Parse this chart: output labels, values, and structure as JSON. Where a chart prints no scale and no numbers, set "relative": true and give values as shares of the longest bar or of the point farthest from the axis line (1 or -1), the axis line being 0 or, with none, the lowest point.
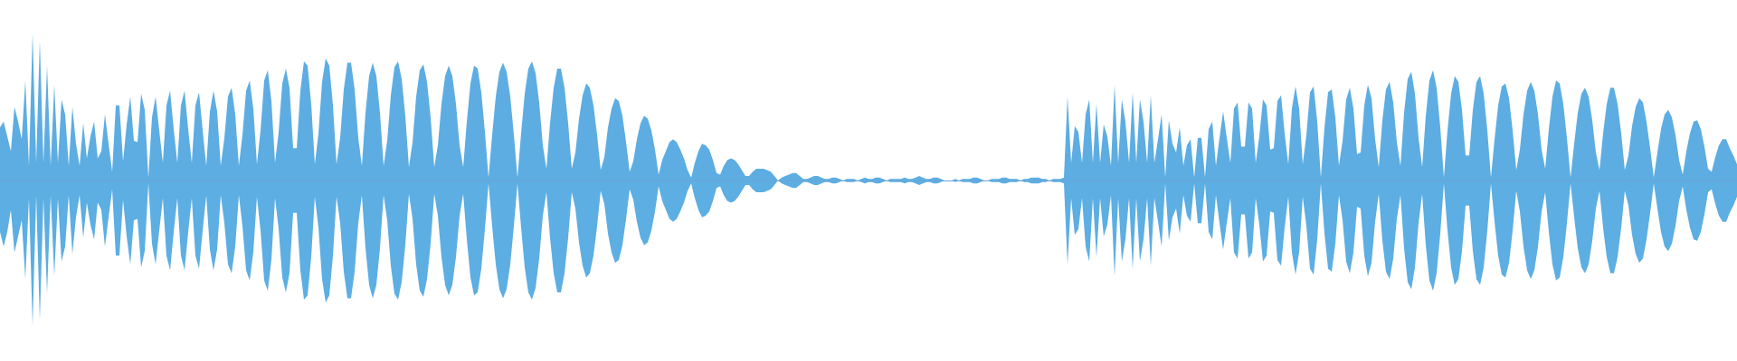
{
  "chart_data": {
    "type": "area",
    "relative": true,
    "marker": "none",
    "categories": [
      null,
      null,
      null,
      null,
      null,
      null,
      null,
      null,
      null,
      null,
      null,
      null,
      null,
      null,
      null,
      null,
      null,
      null,
      null,
      null,
      null,
      null,
      null,
      null,
      null,
      null,
      null,
      null,
      null,
      null,
      null,
      null,
      null,
      null,
      null,
      null,
      null,
      null,
      null,
      null,
      null,
      null,
      null,
      null,
      null,
      null,
      null,
      null,
      null,
      null,
      null,
      null,
      null,
      null,
      null,
      null,
      null,
      null,
      null,
      null,
      null,
      null,
      null,
      null,
      null,
      null,
      null,
      null,
      null,
      null,
      null,
      null,
      null,
      null,
      null,
      null,
      null,
      null,
      null,
      null,
      null,
      null,
      null,
      null,
      null,
      null,
      null,
      null,
      null,
      null,
      null,
      null,
      null,
      null,
      null,
      null,
      null,
      null,
      null,
      null,
      null,
      null,
      null,
      null,
      null,
      null,
      null,
      null,
      null,
      null,
      null,
      null,
      null,
      null,
      null,
      null,
      null,
      null,
      null,
      null,
      null,
      null,
      null,
      null,
      null,
      null,
      null,
      null,
      null,
      null,
      null,
      null,
      null,
      null,
      null,
      null,
      null,
      null,
      null,
      null,
      null,
      null,
      null,
      null,
      null,
      null,
      null,
      null,
      null,
      null,
      null,
      null,
      null,
      null,
      null,
      null,
      null,
      null,
      null,
      null,
      null,
      null,
      null,
      null,
      null,
      null,
      null,
      null,
      null,
      null,
      null,
      null,
      null,
      null,
      null,
      null,
      null,
      null,
      null,
      null,
      null,
      null,
      null,
      null,
      null,
      null,
      null,
      null,
      null,
      null,
      null,
      null,
      null,
      null,
      null,
      null,
      null,
      null,
      null,
      null,
      null,
      null,
      null,
      null,
      null,
      null,
      null,
      null,
      null,
      null,
      null,
      null,
      null,
      null,
      null,
      null,
      null,
      null,
      null,
      null,
      null,
      null,
      null,
      null,
      null,
      null,
      null,
      null,
      null,
      null,
      null,
      null,
      null,
      null,
      null,
      null,
      null,
      null,
      null,
      null,
      null,
      null,
      null,
      null,
      null,
      null,
      null,
      null,
      null,
      null,
      null,
      null,
      null,
      null,
      null,
      null,
      null,
      null,
      null,
      null,
      null,
      null,
      null,
      null,
      null,
      null,
      null,
      null,
      null,
      null,
      null,
      null,
      null,
      null,
      null,
      null,
      null,
      null,
      null,
      null,
      null,
      null,
      null,
      null,
      null,
      null,
      null,
      null,
      null,
      null,
      null,
      null,
      null,
      null,
      null,
      null,
      null,
      null,
      null,
      null,
      null,
      null,
      null,
      null,
      null,
      null,
      null,
      null,
      null,
      null,
      null,
      null,
      null,
      null,
      null,
      null,
      null,
      null,
      null,
      null,
      null,
      null,
      null,
      null,
      null,
      null,
      null,
      null,
      null,
      null,
      null,
      null,
      null,
      null,
      null,
      null,
      null,
      null,
      null,
      null,
      null,
      null,
      null,
      null,
      null,
      null,
      null,
      null,
      null,
      null,
      null,
      null,
      null,
      null,
      null,
      null,
      null,
      null,
      null,
      null,
      null,
      null,
      null,
      null,
      null,
      null,
      null,
      null,
      null,
      null,
      null,
      null,
      null,
      null,
      null,
      null,
      null,
      null,
      null,
      null,
      null,
      null,
      null,
      null,
      null,
      null,
      null,
      null,
      null,
      null,
      null,
      null,
      null,
      null,
      null,
      null,
      null,
      null,
      null,
      null,
      null,
      null,
      null,
      null,
      null,
      null,
      null,
      null,
      null,
      null,
      null,
      null,
      null,
      null,
      null,
      null,
      null,
      null,
      null,
      null,
      null,
      null,
      null,
      null,
      null,
      null,
      null,
      null,
      null,
      null,
      null,
      null,
      null,
      null,
      null,
      null,
      null,
      null,
      null,
      null,
      null,
      null,
      null,
      null,
      null,
      null,
      null,
      null,
      null,
      null,
      null,
      null,
      null,
      null,
      null,
      null,
      null,
      null,
      null,
      null,
      null,
      null,
      null,
      null,
      null,
      null,
      null,
      null,
      null,
      null,
      null,
      null,
      null,
      null,
      null,
      null,
      null,
      null,
      null,
      null,
      null
    ],
    "ref_lines": [
      {
        "axis": "y",
        "value": 0,
        "color": "#6ba6d6"
      }
    ],
    "series": [
      {
        "color": "#5dade2",
        "values": [
          0.36,
          0.4,
          0.3,
          0.2,
          0.5,
          0.4,
          0.28,
          0.68,
          0.1,
          1.0,
          0.12,
          0.95,
          0.12,
          0.78,
          0.1,
          0.65,
          0.12,
          0.55,
          0.45,
          0.1,
          0.5,
          0.25,
          0.1,
          0.39,
          0.15,
          0.3,
          0.4,
          0.15,
          0.2,
          0.45,
          0.25,
          0.06,
          0.51,
          0.51,
          0.13,
          0.38,
          0.57,
          0.27,
          0.26,
          0.59,
          0.48,
          0.02,
          0.43,
          0.57,
          0.34,
          0.12,
          0.51,
          0.61,
          0.35,
          0.12,
          0.51,
          0.61,
          0.35,
          0.12,
          0.51,
          0.6,
          0.34,
          0.1,
          0.47,
          0.61,
          0.47,
          0.1,
          0.29,
          0.57,
          0.63,
          0.45,
          0.1,
          0.31,
          0.61,
          0.68,
          0.49,
          0.11,
          0.34,
          0.68,
          0.75,
          0.54,
          0.12,
          0.33,
          0.66,
          0.76,
          0.63,
          0.22,
          0.22,
          0.61,
          0.81,
          0.78,
          0.52,
          0.11,
          0.32,
          0.67,
          0.83,
          0.78,
          0.51,
          0.11,
          0.29,
          0.62,
          0.8,
          0.8,
          0.62,
          0.29,
          0.1,
          0.46,
          0.71,
          0.8,
          0.71,
          0.46,
          0.1,
          0.27,
          0.58,
          0.77,
          0.81,
          0.69,
          0.44,
          0.09,
          0.26,
          0.57,
          0.75,
          0.79,
          0.67,
          0.43,
          0.09,
          0.24,
          0.52,
          0.71,
          0.78,
          0.71,
          0.52,
          0.24,
          0.09,
          0.4,
          0.66,
          0.78,
          0.76,
          0.6,
          0.33,
          0.02,
          0.31,
          0.57,
          0.74,
          0.8,
          0.74,
          0.57,
          0.31,
          0.02,
          0.32,
          0.59,
          0.76,
          0.81,
          0.73,
          0.53,
          0.24,
          0.08,
          0.39,
          0.63,
          0.76,
          0.76,
          0.63,
          0.39,
          0.08,
          0.19,
          0.42,
          0.58,
          0.66,
          0.63,
          0.51,
          0.31,
          0.07,
          0.16,
          0.36,
          0.49,
          0.56,
          0.54,
          0.44,
          0.26,
          0.06,
          0.13,
          0.28,
          0.39,
          0.44,
          0.42,
          0.34,
          0.21,
          0.04,
          0.14,
          0.2,
          0.26,
          0.28,
          0.26,
          0.21,
          0.15,
          0.07,
          0.02,
          0.12,
          0.2,
          0.25,
          0.24,
          0.21,
          0.14,
          0.05,
          0.04,
          0.1,
          0.14,
          0.15,
          0.14,
          0.11,
          0.07,
          0.03,
          0.03,
          0.06,
          0.08,
          0.08,
          0.08,
          0.07,
          0.06,
          0.03,
          0.0,
          0.02,
          0.03,
          0.04,
          0.05,
          0.05,
          0.03,
          0.01,
          0.01,
          0.02,
          0.03,
          0.03,
          0.02,
          0.01,
          0.01,
          0.02,
          0.02,
          0.01,
          0.0,
          0.01,
          0.01,
          0.01,
          0.0,
          0.01,
          0.02,
          0.01,
          0.01,
          0.02,
          0.02,
          0.01,
          0.0,
          0.01,
          0.01,
          0.01,
          0.01,
          0.02,
          0.01,
          0.01,
          0.02,
          0.03,
          0.02,
          0.01,
          0.01,
          0.02,
          0.02,
          0.01,
          0.0,
          0.0,
          0.0,
          0.01,
          0.0,
          0.01,
          0.01,
          0.01,
          0.02,
          0.02,
          0.01,
          0.0,
          0.0,
          0.01,
          0.01,
          0.01,
          0.02,
          0.02,
          0.01,
          0.01,
          0.01,
          0.0,
          0.01,
          0.01,
          0.02,
          0.02,
          0.02,
          0.01,
          0.01,
          0.0,
          0.01,
          0.01,
          0.01,
          0.02,
          0.57,
          0.12,
          0.37,
          0.33,
          0.12,
          0.45,
          0.55,
          0.12,
          0.52,
          0.12,
          0.38,
          0.3,
          0.1,
          0.65,
          0.12,
          0.55,
          0.4,
          0.12,
          0.6,
          0.12,
          0.55,
          0.4,
          0.12,
          0.58,
          0.12,
          0.28,
          0.45,
          0.02,
          0.41,
          0.25,
          0.19,
          0.36,
          0.1,
          0.24,
          0.28,
          0.02,
          0.29,
          0.29,
          0.02,
          0.35,
          0.4,
          0.1,
          0.29,
          0.47,
          0.29,
          0.12,
          0.49,
          0.53,
          0.23,
          0.23,
          0.53,
          0.49,
          0.12,
          0.3,
          0.55,
          0.51,
          0.21,
          0.22,
          0.54,
          0.58,
          0.32,
          0.11,
          0.49,
          0.64,
          0.49,
          0.11,
          0.31,
          0.6,
          0.64,
          0.4,
          0.02,
          0.36,
          0.6,
          0.62,
          0.43,
          0.1,
          0.27,
          0.55,
          0.63,
          0.49,
          0.18,
          0.19,
          0.51,
          0.65,
          0.56,
          0.28,
          0.09,
          0.41,
          0.62,
          0.67,
          0.53,
          0.26,
          0.1,
          0.46,
          0.69,
          0.74,
          0.59,
          0.29,
          0.09,
          0.44,
          0.68,
          0.75,
          0.63,
          0.36,
          0.02,
          0.34,
          0.59,
          0.71,
          0.67,
          0.48,
          0.17,
          0.17,
          0.48,
          0.67,
          0.71,
          0.59,
          0.34,
          0.02,
          0.28,
          0.51,
          0.64,
          0.66,
          0.56,
          0.34,
          0.07,
          0.21,
          0.45,
          0.61,
          0.67,
          0.61,
          0.45,
          0.21,
          0.08,
          0.35,
          0.57,
          0.68,
          0.66,
          0.52,
          0.29,
          0.02,
          0.25,
          0.46,
          0.59,
          0.63,
          0.57,
          0.41,
          0.19,
          0.07,
          0.32,
          0.52,
          0.63,
          0.63,
          0.52,
          0.32,
          0.07,
          0.17,
          0.37,
          0.5,
          0.56,
          0.53,
          0.4,
          0.22,
          0.02,
          0.19,
          0.35,
          0.45,
          0.48,
          0.43,
          0.31,
          0.14,
          0.04,
          0.2,
          0.32,
          0.4,
          0.41,
          0.35,
          0.23,
          0.08,
          0.06,
          0.16,
          0.24,
          0.28,
          0.28,
          0.22,
          0.17,
          0.11
        ]
      },
      {
        "color": "#5caee3",
        "values": [
          -0.35,
          -0.45,
          -0.35,
          -0.2,
          -0.49,
          -0.38,
          -0.27,
          -0.67,
          -0.12,
          -0.99,
          -0.1,
          -0.95,
          -0.12,
          -0.77,
          -0.1,
          -0.65,
          -0.12,
          -0.55,
          -0.45,
          -0.1,
          -0.5,
          -0.25,
          -0.1,
          -0.39,
          -0.15,
          -0.3,
          -0.4,
          -0.15,
          -0.2,
          -0.45,
          -0.25,
          -0.06,
          -0.51,
          -0.51,
          -0.13,
          -0.38,
          -0.57,
          -0.27,
          -0.26,
          -0.59,
          -0.48,
          -0.02,
          -0.43,
          -0.57,
          -0.34,
          -0.12,
          -0.51,
          -0.61,
          -0.35,
          -0.12,
          -0.51,
          -0.61,
          -0.35,
          -0.12,
          -0.51,
          -0.6,
          -0.34,
          -0.1,
          -0.47,
          -0.61,
          -0.47,
          -0.1,
          -0.29,
          -0.57,
          -0.63,
          -0.45,
          -0.1,
          -0.31,
          -0.61,
          -0.68,
          -0.49,
          -0.11,
          -0.34,
          -0.68,
          -0.75,
          -0.54,
          -0.12,
          -0.33,
          -0.66,
          -0.76,
          -0.63,
          -0.22,
          -0.22,
          -0.61,
          -0.81,
          -0.78,
          -0.52,
          -0.11,
          -0.32,
          -0.67,
          -0.83,
          -0.78,
          -0.51,
          -0.11,
          -0.29,
          -0.62,
          -0.8,
          -0.8,
          -0.62,
          -0.29,
          -0.1,
          -0.46,
          -0.71,
          -0.8,
          -0.71,
          -0.46,
          -0.1,
          -0.27,
          -0.58,
          -0.77,
          -0.81,
          -0.69,
          -0.44,
          -0.09,
          -0.26,
          -0.57,
          -0.75,
          -0.79,
          -0.67,
          -0.43,
          -0.09,
          -0.24,
          -0.52,
          -0.71,
          -0.78,
          -0.71,
          -0.52,
          -0.24,
          -0.09,
          -0.4,
          -0.66,
          -0.78,
          -0.76,
          -0.6,
          -0.33,
          -0.02,
          -0.31,
          -0.57,
          -0.74,
          -0.8,
          -0.74,
          -0.57,
          -0.31,
          -0.02,
          -0.32,
          -0.59,
          -0.76,
          -0.81,
          -0.73,
          -0.53,
          -0.24,
          -0.08,
          -0.39,
          -0.63,
          -0.76,
          -0.76,
          -0.63,
          -0.39,
          -0.08,
          -0.19,
          -0.42,
          -0.58,
          -0.66,
          -0.63,
          -0.51,
          -0.31,
          -0.07,
          -0.16,
          -0.36,
          -0.49,
          -0.56,
          -0.54,
          -0.44,
          -0.26,
          -0.06,
          -0.13,
          -0.28,
          -0.39,
          -0.44,
          -0.42,
          -0.34,
          -0.21,
          -0.04,
          -0.14,
          -0.2,
          -0.26,
          -0.28,
          -0.26,
          -0.21,
          -0.15,
          -0.07,
          -0.02,
          -0.12,
          -0.2,
          -0.25,
          -0.24,
          -0.21,
          -0.14,
          -0.05,
          -0.04,
          -0.1,
          -0.14,
          -0.15,
          -0.14,
          -0.11,
          -0.07,
          -0.03,
          -0.03,
          -0.06,
          -0.08,
          -0.08,
          -0.08,
          -0.07,
          -0.06,
          -0.03,
          0.0,
          -0.02,
          -0.03,
          -0.04,
          -0.05,
          -0.05,
          -0.03,
          -0.01,
          -0.01,
          -0.02,
          -0.03,
          -0.03,
          -0.02,
          -0.01,
          -0.01,
          -0.02,
          -0.02,
          -0.01,
          0.0,
          -0.01,
          -0.01,
          -0.01,
          0.0,
          -0.01,
          -0.02,
          -0.01,
          -0.01,
          -0.02,
          -0.02,
          -0.01,
          0.0,
          -0.01,
          -0.01,
          -0.01,
          -0.01,
          -0.02,
          -0.01,
          -0.01,
          -0.02,
          -0.03,
          -0.02,
          -0.01,
          -0.01,
          -0.02,
          -0.02,
          -0.01,
          0.0,
          0.0,
          0.0,
          -0.01,
          0.0,
          -0.01,
          -0.01,
          -0.01,
          -0.02,
          -0.02,
          -0.01,
          0.0,
          0.0,
          -0.01,
          -0.01,
          -0.01,
          -0.02,
          -0.02,
          -0.01,
          -0.01,
          -0.01,
          0.0,
          -0.01,
          -0.01,
          -0.02,
          -0.02,
          -0.02,
          -0.01,
          -0.01,
          0.0,
          -0.01,
          -0.01,
          -0.01,
          -0.02,
          -0.57,
          -0.12,
          -0.37,
          -0.33,
          -0.12,
          -0.45,
          -0.55,
          -0.12,
          -0.52,
          -0.12,
          -0.38,
          -0.3,
          -0.1,
          -0.65,
          -0.12,
          -0.55,
          -0.4,
          -0.12,
          -0.6,
          -0.12,
          -0.55,
          -0.4,
          -0.12,
          -0.58,
          -0.12,
          -0.28,
          -0.45,
          -0.02,
          -0.41,
          -0.25,
          -0.19,
          -0.36,
          -0.1,
          -0.24,
          -0.28,
          -0.02,
          -0.29,
          -0.29,
          -0.02,
          -0.35,
          -0.4,
          -0.1,
          -0.29,
          -0.47,
          -0.29,
          -0.12,
          -0.49,
          -0.53,
          -0.23,
          -0.23,
          -0.53,
          -0.49,
          -0.12,
          -0.3,
          -0.55,
          -0.51,
          -0.21,
          -0.22,
          -0.54,
          -0.58,
          -0.32,
          -0.11,
          -0.49,
          -0.64,
          -0.49,
          -0.11,
          -0.31,
          -0.6,
          -0.64,
          -0.4,
          -0.02,
          -0.36,
          -0.6,
          -0.62,
          -0.43,
          -0.1,
          -0.27,
          -0.55,
          -0.63,
          -0.49,
          -0.18,
          -0.19,
          -0.51,
          -0.65,
          -0.56,
          -0.28,
          -0.09,
          -0.41,
          -0.62,
          -0.67,
          -0.53,
          -0.26,
          -0.1,
          -0.46,
          -0.69,
          -0.74,
          -0.59,
          -0.29,
          -0.09,
          -0.44,
          -0.68,
          -0.75,
          -0.63,
          -0.36,
          -0.02,
          -0.34,
          -0.59,
          -0.71,
          -0.67,
          -0.48,
          -0.17,
          -0.17,
          -0.48,
          -0.67,
          -0.71,
          -0.59,
          -0.34,
          -0.02,
          -0.28,
          -0.51,
          -0.64,
          -0.66,
          -0.56,
          -0.34,
          -0.07,
          -0.21,
          -0.45,
          -0.61,
          -0.67,
          -0.61,
          -0.45,
          -0.21,
          -0.08,
          -0.35,
          -0.57,
          -0.68,
          -0.66,
          -0.52,
          -0.29,
          -0.02,
          -0.25,
          -0.46,
          -0.59,
          -0.63,
          -0.57,
          -0.41,
          -0.19,
          -0.07,
          -0.32,
          -0.52,
          -0.63,
          -0.63,
          -0.52,
          -0.32,
          -0.07,
          -0.17,
          -0.37,
          -0.5,
          -0.56,
          -0.53,
          -0.4,
          -0.22,
          -0.02,
          -0.19,
          -0.35,
          -0.45,
          -0.48,
          -0.43,
          -0.31,
          -0.14,
          -0.04,
          -0.2,
          -0.32,
          -0.4,
          -0.41,
          -0.35,
          -0.23,
          -0.08,
          -0.06,
          -0.16,
          -0.24,
          -0.28,
          -0.28,
          -0.22,
          -0.17,
          -0.11
        ]
      }
    ]
  }
}
